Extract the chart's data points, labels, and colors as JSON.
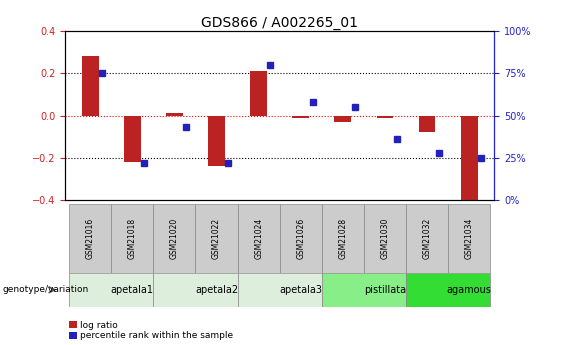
{
  "title": "GDS866 / A002265_01",
  "samples": [
    "GSM21016",
    "GSM21018",
    "GSM21020",
    "GSM21022",
    "GSM21024",
    "GSM21026",
    "GSM21028",
    "GSM21030",
    "GSM21032",
    "GSM21034"
  ],
  "log_ratio": [
    0.28,
    -0.22,
    0.01,
    -0.24,
    0.21,
    -0.01,
    -0.03,
    -0.01,
    -0.08,
    -0.44
  ],
  "percentile_rank": [
    75,
    22,
    43,
    22,
    80,
    58,
    55,
    36,
    28,
    25
  ],
  "ylim_left": [
    -0.4,
    0.4
  ],
  "ylim_right": [
    0,
    100
  ],
  "yticks_left": [
    -0.4,
    -0.2,
    0.0,
    0.2,
    0.4
  ],
  "yticks_right": [
    0,
    25,
    50,
    75,
    100
  ],
  "hlines": [
    0.2,
    0.0,
    -0.2
  ],
  "hline_colors": [
    "black",
    "red",
    "black"
  ],
  "hline_styles": [
    "dotted",
    "dotted",
    "dotted"
  ],
  "bar_color": "#BB2222",
  "dot_color": "#2222BB",
  "groups": [
    {
      "label": "apetala1",
      "start": 0,
      "end": 2,
      "color": "#DDEEDD"
    },
    {
      "label": "apetala2",
      "start": 2,
      "end": 4,
      "color": "#DDEEDD"
    },
    {
      "label": "apetala3",
      "start": 4,
      "end": 6,
      "color": "#DDEEDD"
    },
    {
      "label": "pistillata",
      "start": 6,
      "end": 8,
      "color": "#88EE88"
    },
    {
      "label": "agamous",
      "start": 8,
      "end": 10,
      "color": "#33DD33"
    }
  ],
  "sample_box_color": "#CCCCCC",
  "legend_labels": [
    "log ratio",
    "percentile rank within the sample"
  ],
  "legend_colors": [
    "#BB2222",
    "#2222BB"
  ],
  "genotype_label": "genotype/variation",
  "title_fontsize": 10,
  "left_tick_color": "#CC2222",
  "right_tick_color": "#2222CC"
}
